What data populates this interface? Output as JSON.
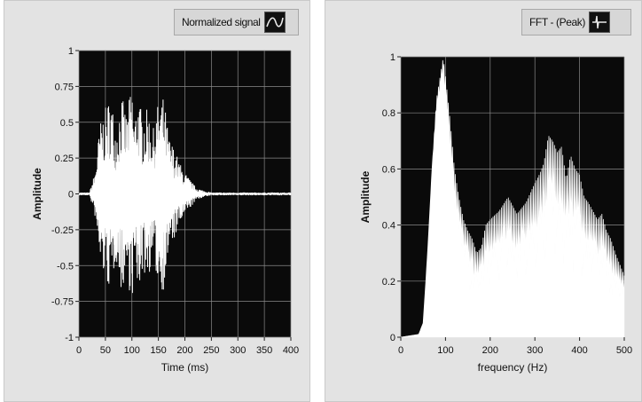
{
  "chart_data": [
    {
      "type": "line",
      "legend": "Normalized signal",
      "legend_placement": "top-right",
      "xlabel": "Time (ms)",
      "ylabel": "Amplitude",
      "xlim": [
        0,
        400
      ],
      "ylim": [
        -1,
        1
      ],
      "x_ticks": [
        "0",
        "50",
        "100",
        "150",
        "200",
        "250",
        "300",
        "350",
        "400"
      ],
      "y_ticks": [
        "-1",
        "-0.75",
        "-0.5",
        "-0.25",
        "0",
        "0.25",
        "0.5",
        "0.75",
        "1"
      ],
      "grid": true,
      "plot_background": "#0a0a0a",
      "line_color": "#ffffff",
      "series": [
        {
          "x": [
            0,
            20,
            30,
            40,
            50,
            60,
            70,
            80,
            90,
            100,
            105,
            110,
            120,
            130,
            140,
            150,
            160,
            170,
            180,
            190,
            200,
            210,
            220,
            230,
            240,
            250,
            300,
            350,
            400
          ],
          "envelope": [
            0.01,
            0.01,
            0.15,
            0.5,
            0.6,
            0.7,
            0.45,
            0.7,
            0.55,
            0.78,
            0.5,
            0.72,
            0.55,
            0.6,
            0.45,
            0.65,
            0.68,
            0.4,
            0.32,
            0.22,
            0.15,
            0.1,
            0.05,
            0.03,
            0.02,
            0.01,
            0.01,
            0.01,
            0.01
          ]
        }
      ]
    },
    {
      "type": "area",
      "legend": "FFT - (Peak)",
      "legend_placement": "top-right",
      "xlabel": "frequency (Hz)",
      "ylabel": "Amplitude",
      "xlim": [
        0,
        500
      ],
      "ylim": [
        0,
        1
      ],
      "x_ticks": [
        "0",
        "100",
        "200",
        "300",
        "400",
        "500"
      ],
      "y_ticks": [
        "0",
        "0.2",
        "0.4",
        "0.6",
        "0.8",
        "1"
      ],
      "grid": true,
      "plot_background": "#0a0a0a",
      "fill_color": "#ffffff",
      "series": [
        {
          "x": [
            0,
            40,
            50,
            60,
            70,
            80,
            90,
            95,
            100,
            110,
            120,
            130,
            140,
            150,
            160,
            170,
            180,
            190,
            200,
            220,
            240,
            260,
            280,
            300,
            310,
            320,
            330,
            340,
            350,
            360,
            370,
            380,
            390,
            400,
            410,
            420,
            430,
            440,
            450,
            460,
            470,
            480,
            490,
            500
          ],
          "upper": [
            0.0,
            0.01,
            0.05,
            0.3,
            0.6,
            0.85,
            0.95,
            1.0,
            0.93,
            0.78,
            0.6,
            0.5,
            0.42,
            0.38,
            0.35,
            0.3,
            0.32,
            0.4,
            0.42,
            0.45,
            0.5,
            0.44,
            0.48,
            0.55,
            0.58,
            0.62,
            0.72,
            0.7,
            0.66,
            0.68,
            0.56,
            0.65,
            0.6,
            0.58,
            0.5,
            0.48,
            0.45,
            0.42,
            0.44,
            0.38,
            0.35,
            0.3,
            0.26,
            0.22
          ],
          "lower": [
            0.0,
            0.01,
            0.05,
            0.3,
            0.6,
            0.8,
            0.85,
            0.92,
            0.8,
            0.6,
            0.42,
            0.3,
            0.25,
            0.2,
            0.12,
            0.1,
            0.12,
            0.15,
            0.18,
            0.2,
            0.2,
            0.18,
            0.2,
            0.22,
            0.22,
            0.25,
            0.28,
            0.3,
            0.26,
            0.25,
            0.25,
            0.22,
            0.2,
            0.2,
            0.18,
            0.16,
            0.15,
            0.15,
            0.14,
            0.12,
            0.12,
            0.12,
            0.12,
            0.12
          ]
        }
      ]
    }
  ]
}
